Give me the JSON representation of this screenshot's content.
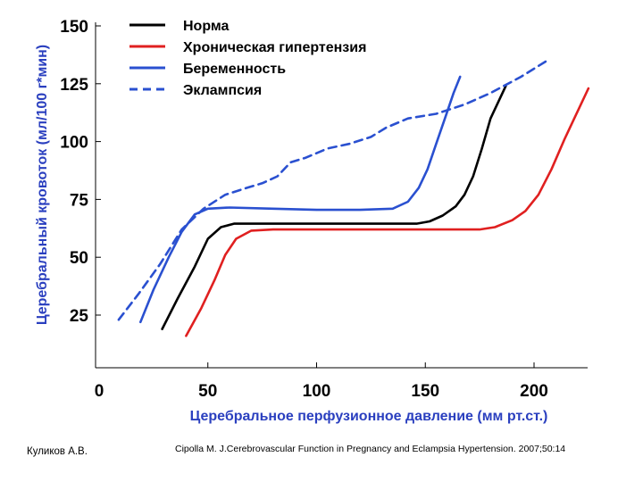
{
  "chart_data": {
    "type": "line",
    "xlabel": "Церебральное перфузионное давление (мм рт.ст.)",
    "ylabel": "Церебральный кровоток (мл/100 г*мин)",
    "xlim": [
      0,
      225
    ],
    "ylim": [
      0,
      150
    ],
    "x_ticks": [
      "0",
      "50",
      "100",
      "150",
      "200"
    ],
    "y_ticks": [
      "25",
      "50",
      "75",
      "100",
      "125",
      "150"
    ],
    "grid": false,
    "legend_position": "top-left",
    "series": [
      {
        "name": "Норма",
        "color": "#000000",
        "dash": "solid",
        "x": [
          29,
          36,
          44,
          50,
          56,
          62,
          80,
          100,
          120,
          140,
          146,
          152,
          158,
          164,
          168,
          172,
          176,
          180,
          187
        ],
        "y": [
          19,
          32,
          46,
          58,
          63,
          64.5,
          64.5,
          64.5,
          64.5,
          64.5,
          64.5,
          65.5,
          68,
          72,
          77,
          85,
          97,
          110,
          124
        ]
      },
      {
        "name": "Хроническая гипертензия",
        "color": "#e02020",
        "dash": "solid",
        "x": [
          40,
          47,
          53,
          58,
          63,
          70,
          80,
          100,
          130,
          160,
          168,
          175,
          182,
          190,
          196,
          202,
          208,
          214,
          220,
          225
        ],
        "y": [
          16,
          28,
          40,
          51,
          58,
          61.5,
          62,
          62,
          62,
          62,
          62,
          62,
          63,
          66,
          70,
          77,
          88,
          101,
          113,
          123
        ]
      },
      {
        "name": "Беременность",
        "color": "#2a50d0",
        "dash": "solid",
        "x": [
          19,
          25,
          32,
          38,
          44,
          50,
          60,
          80,
          100,
          120,
          135,
          142,
          147,
          151,
          155,
          159,
          163,
          166
        ],
        "y": [
          22,
          36,
          50,
          61,
          68.5,
          71,
          71.5,
          71,
          70.5,
          70.5,
          71,
          74,
          80,
          88,
          99,
          110,
          121,
          128
        ]
      },
      {
        "name": "Эклампсия",
        "color": "#2a50d0",
        "dash": "dashed",
        "x": [
          9,
          18,
          28,
          38,
          48,
          58,
          68,
          75,
          82,
          88,
          95,
          105,
          115,
          125,
          132,
          142,
          155,
          168,
          180,
          194,
          206
        ],
        "y": [
          23,
          34,
          47,
          62,
          71,
          77,
          80,
          82,
          85,
          91,
          93,
          97,
          99,
          102,
          106,
          110,
          112,
          116,
          121,
          128,
          135
        ]
      }
    ]
  },
  "footer": {
    "author": "Куликов А.В.",
    "source": "Cipolla M. J.Cerebrovascular Function in Pregnancy and Eclampsia Hypertension. 2007;50:14"
  }
}
